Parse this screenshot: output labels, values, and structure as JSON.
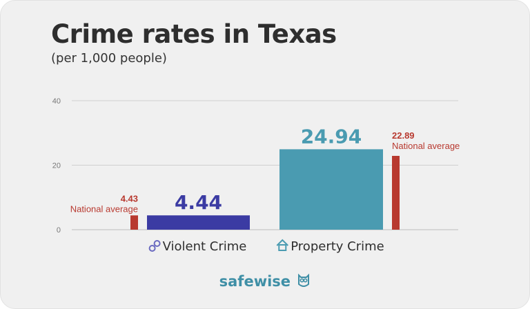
{
  "header": {
    "title": "Crime rates in Texas",
    "subtitle": "(per 1,000 people)"
  },
  "colors": {
    "violent": "#3b3ba3",
    "property": "#4a9bb1",
    "national": "#b8392f",
    "property_value": "#4a9bb1",
    "violent_value": "#3b3ba3",
    "grid": "#cfcfcf",
    "tick": "#777777"
  },
  "chart_data": {
    "type": "bar",
    "ylim": [
      0,
      40
    ],
    "yticks": [
      "0",
      "20",
      "40"
    ],
    "ytick_values": [
      0,
      20,
      40
    ],
    "categories": [
      {
        "label": "Violent Crime",
        "icon": "handcuffs-icon",
        "value": 4.44,
        "value_label": "4.44",
        "national_value": 4.43,
        "national_value_label": "4.43",
        "national_label": "National average"
      },
      {
        "label": "Property Crime",
        "icon": "house-icon",
        "value": 24.94,
        "value_label": "24.94",
        "national_value": 22.89,
        "national_value_label": "22.89",
        "national_label": "National average"
      }
    ]
  },
  "logo": {
    "text_a": "safe",
    "text_b": "wise",
    "icon": "owl-icon"
  }
}
